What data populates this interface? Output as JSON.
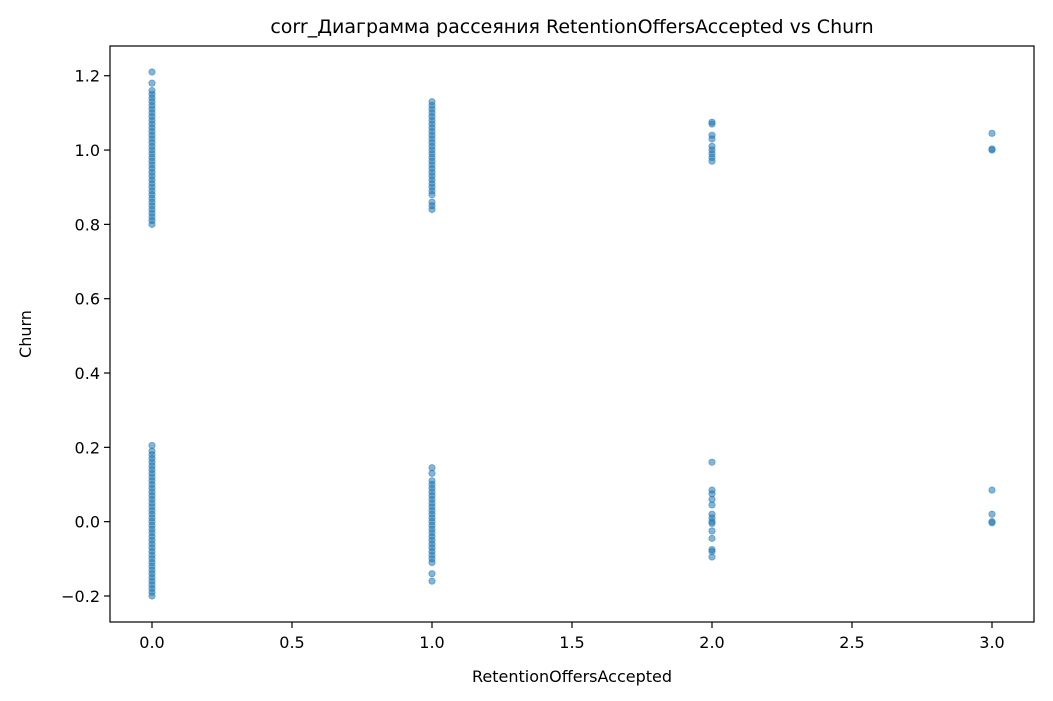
{
  "chart_data": {
    "type": "scatter",
    "title": "corr_Диаграмма рассеяния RetentionOffersAccepted vs Churn",
    "xlabel": "RetentionOffersAccepted",
    "ylabel": "Churn",
    "xlim": [
      -0.15,
      3.15
    ],
    "ylim": [
      -0.27,
      1.28
    ],
    "xticks": [
      0.0,
      0.5,
      1.0,
      1.5,
      2.0,
      2.5,
      3.0
    ],
    "xtick_labels": [
      "0.0",
      "0.5",
      "1.0",
      "1.5",
      "2.0",
      "2.5",
      "3.0"
    ],
    "yticks": [
      -0.2,
      0.0,
      0.2,
      0.4,
      0.6,
      0.8,
      1.0,
      1.2
    ],
    "ytick_labels": [
      "−0.2",
      "0.0",
      "0.2",
      "0.4",
      "0.6",
      "0.8",
      "1.0",
      "1.2"
    ],
    "grid": false,
    "legend": "none",
    "marker_color": "#1f77b4",
    "series": [
      {
        "points": [
          [
            0,
            1.21
          ],
          [
            0,
            1.18
          ],
          [
            0,
            1.16
          ],
          [
            0,
            1.15
          ],
          [
            0,
            1.14
          ],
          [
            0,
            1.13
          ],
          [
            0,
            1.12
          ],
          [
            0,
            1.11
          ],
          [
            0,
            1.1
          ],
          [
            0,
            1.09
          ],
          [
            0,
            1.08
          ],
          [
            0,
            1.07
          ],
          [
            0,
            1.06
          ],
          [
            0,
            1.05
          ],
          [
            0,
            1.04
          ],
          [
            0,
            1.03
          ],
          [
            0,
            1.02
          ],
          [
            0,
            1.01
          ],
          [
            0,
            1.0
          ],
          [
            0,
            0.99
          ],
          [
            0,
            0.98
          ],
          [
            0,
            0.97
          ],
          [
            0,
            0.96
          ],
          [
            0,
            0.95
          ],
          [
            0,
            0.94
          ],
          [
            0,
            0.93
          ],
          [
            0,
            0.92
          ],
          [
            0,
            0.91
          ],
          [
            0,
            0.9
          ],
          [
            0,
            0.89
          ],
          [
            0,
            0.88
          ],
          [
            0,
            0.87
          ],
          [
            0,
            0.86
          ],
          [
            0,
            0.85
          ],
          [
            0,
            0.84
          ],
          [
            0,
            0.83
          ],
          [
            0,
            0.82
          ],
          [
            0,
            0.81
          ],
          [
            0,
            0.8
          ],
          [
            0,
            0.205
          ],
          [
            0,
            0.19
          ],
          [
            0,
            0.18
          ],
          [
            0,
            0.17
          ],
          [
            0,
            0.16
          ],
          [
            0,
            0.15
          ],
          [
            0,
            0.14
          ],
          [
            0,
            0.13
          ],
          [
            0,
            0.12
          ],
          [
            0,
            0.11
          ],
          [
            0,
            0.1
          ],
          [
            0,
            0.09
          ],
          [
            0,
            0.08
          ],
          [
            0,
            0.07
          ],
          [
            0,
            0.06
          ],
          [
            0,
            0.05
          ],
          [
            0,
            0.04
          ],
          [
            0,
            0.03
          ],
          [
            0,
            0.02
          ],
          [
            0,
            0.01
          ],
          [
            0,
            0.0
          ],
          [
            0,
            -0.01
          ],
          [
            0,
            -0.02
          ],
          [
            0,
            -0.03
          ],
          [
            0,
            -0.04
          ],
          [
            0,
            -0.05
          ],
          [
            0,
            -0.06
          ],
          [
            0,
            -0.07
          ],
          [
            0,
            -0.08
          ],
          [
            0,
            -0.09
          ],
          [
            0,
            -0.1
          ],
          [
            0,
            -0.11
          ],
          [
            0,
            -0.12
          ],
          [
            0,
            -0.13
          ],
          [
            0,
            -0.14
          ],
          [
            0,
            -0.15
          ],
          [
            0,
            -0.16
          ],
          [
            0,
            -0.17
          ],
          [
            0,
            -0.18
          ],
          [
            0,
            -0.19
          ],
          [
            0,
            -0.2
          ],
          [
            1,
            1.13
          ],
          [
            1,
            1.12
          ],
          [
            1,
            1.11
          ],
          [
            1,
            1.1
          ],
          [
            1,
            1.09
          ],
          [
            1,
            1.08
          ],
          [
            1,
            1.07
          ],
          [
            1,
            1.06
          ],
          [
            1,
            1.05
          ],
          [
            1,
            1.04
          ],
          [
            1,
            1.03
          ],
          [
            1,
            1.02
          ],
          [
            1,
            1.01
          ],
          [
            1,
            1.0
          ],
          [
            1,
            0.99
          ],
          [
            1,
            0.98
          ],
          [
            1,
            0.97
          ],
          [
            1,
            0.96
          ],
          [
            1,
            0.95
          ],
          [
            1,
            0.94
          ],
          [
            1,
            0.93
          ],
          [
            1,
            0.92
          ],
          [
            1,
            0.91
          ],
          [
            1,
            0.9
          ],
          [
            1,
            0.89
          ],
          [
            1,
            0.88
          ],
          [
            1,
            0.86
          ],
          [
            1,
            0.85
          ],
          [
            1,
            0.84
          ],
          [
            1,
            0.145
          ],
          [
            1,
            0.13
          ],
          [
            1,
            0.11
          ],
          [
            1,
            0.1
          ],
          [
            1,
            0.09
          ],
          [
            1,
            0.08
          ],
          [
            1,
            0.07
          ],
          [
            1,
            0.06
          ],
          [
            1,
            0.05
          ],
          [
            1,
            0.04
          ],
          [
            1,
            0.03
          ],
          [
            1,
            0.02
          ],
          [
            1,
            0.01
          ],
          [
            1,
            0.0
          ],
          [
            1,
            -0.01
          ],
          [
            1,
            -0.02
          ],
          [
            1,
            -0.03
          ],
          [
            1,
            -0.04
          ],
          [
            1,
            -0.05
          ],
          [
            1,
            -0.06
          ],
          [
            1,
            -0.07
          ],
          [
            1,
            -0.08
          ],
          [
            1,
            -0.09
          ],
          [
            1,
            -0.1
          ],
          [
            1,
            -0.11
          ],
          [
            1,
            -0.14
          ],
          [
            1,
            -0.16
          ],
          [
            2,
            1.075
          ],
          [
            2,
            1.07
          ],
          [
            2,
            1.04
          ],
          [
            2,
            1.03
          ],
          [
            2,
            1.01
          ],
          [
            2,
            1.0
          ],
          [
            2,
            0.99
          ],
          [
            2,
            0.98
          ],
          [
            2,
            0.97
          ],
          [
            2,
            0.16
          ],
          [
            2,
            0.085
          ],
          [
            2,
            0.075
          ],
          [
            2,
            0.06
          ],
          [
            2,
            0.045
          ],
          [
            2,
            0.02
          ],
          [
            2,
            0.01
          ],
          [
            2,
            0.0
          ],
          [
            2,
            -0.005
          ],
          [
            2,
            -0.025
          ],
          [
            2,
            -0.045
          ],
          [
            2,
            -0.075
          ],
          [
            2,
            -0.08
          ],
          [
            2,
            -0.095
          ],
          [
            3,
            1.045
          ],
          [
            3,
            1.0
          ],
          [
            3,
            1.003
          ],
          [
            3,
            0.085
          ],
          [
            3,
            0.02
          ],
          [
            3,
            0.0
          ],
          [
            3,
            -0.003
          ]
        ]
      }
    ]
  }
}
